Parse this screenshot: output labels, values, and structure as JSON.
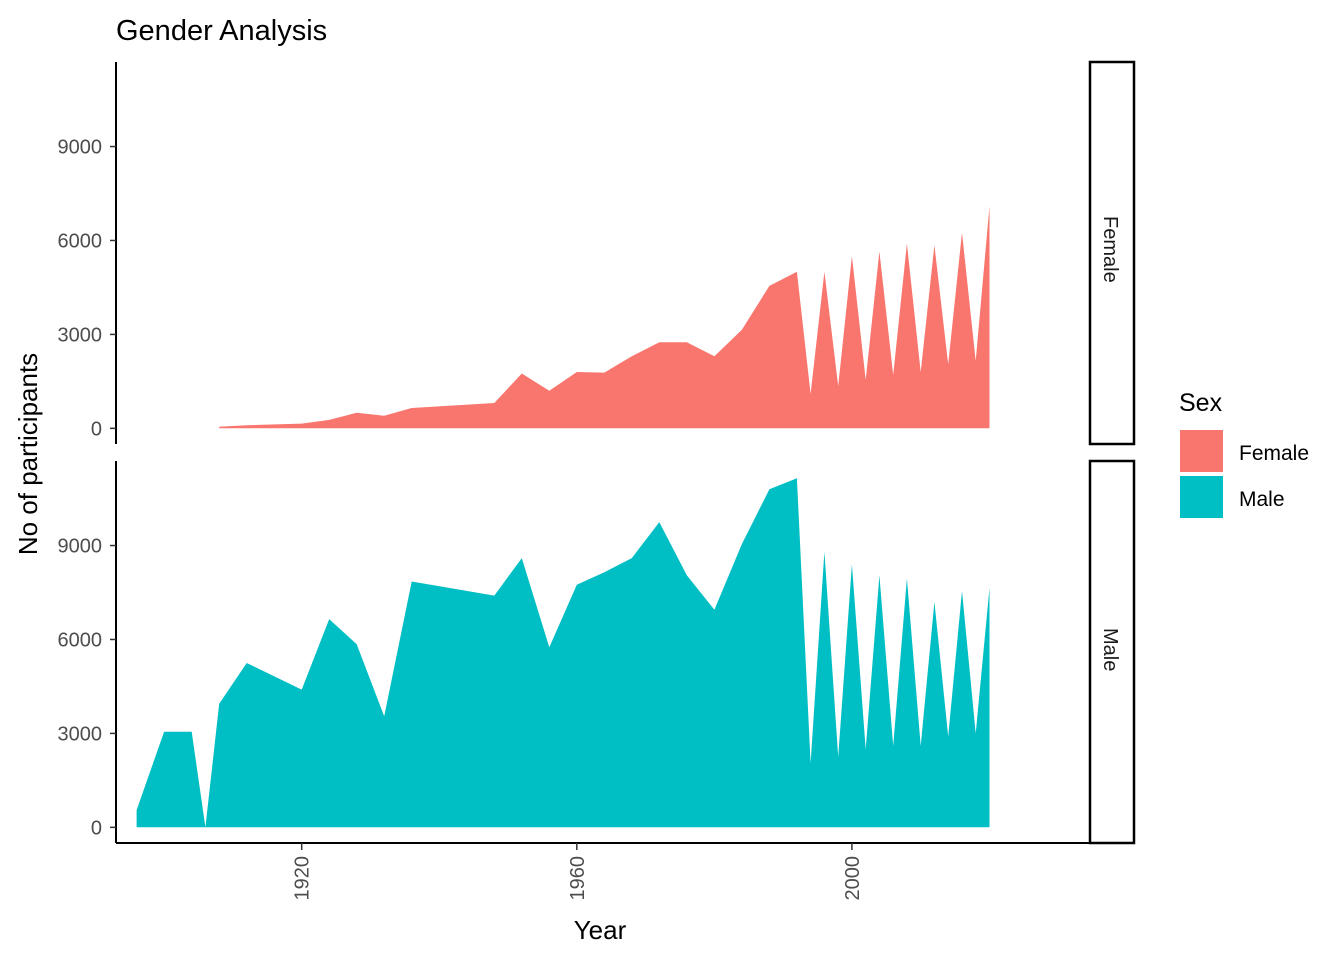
{
  "chart_data": {
    "type": "area",
    "title": "Gender Analysis",
    "xlabel": "Year",
    "ylabel": "No of participants",
    "x_ticks": [
      1920,
      1960,
      2000
    ],
    "x_tick_labels": [
      "1920",
      "1960",
      "2000"
    ],
    "y_ticks": [
      0,
      3000,
      6000,
      9000
    ],
    "y_tick_labels": [
      "0",
      "3000",
      "6000",
      "9000"
    ],
    "xlim": [
      1893,
      2032
    ],
    "ylim": [
      -500,
      11700
    ],
    "grid": false,
    "legend": {
      "title": "Sex",
      "position": "right",
      "entries": [
        {
          "label": "Female",
          "color": "#F8766D"
        },
        {
          "label": "Male",
          "color": "#00BFC4"
        }
      ]
    },
    "series": [
      {
        "name": "Female",
        "panel": "Female",
        "color": "#F8766D",
        "x": [
          1908,
          1912,
          1920,
          1924,
          1928,
          1932,
          1936,
          1948,
          1952,
          1956,
          1960,
          1964,
          1968,
          1972,
          1976,
          1980,
          1984,
          1988,
          1992,
          1994,
          1996,
          1998,
          2000,
          2002,
          2004,
          2006,
          2008,
          2010,
          2012,
          2014,
          2016,
          2018,
          2020
        ],
        "y": [
          50,
          100,
          150,
          270,
          500,
          400,
          650,
          810,
          1750,
          1200,
          1800,
          1780,
          2300,
          2750,
          2750,
          2300,
          3150,
          4550,
          5000,
          1100,
          5000,
          1350,
          5500,
          1550,
          5650,
          1700,
          5900,
          1800,
          5850,
          2050,
          6250,
          2150,
          7100
        ]
      },
      {
        "name": "Male",
        "panel": "Male",
        "color": "#00BFC4",
        "x": [
          1896,
          1900,
          1904,
          1906,
          1908,
          1912,
          1920,
          1924,
          1928,
          1932,
          1936,
          1948,
          1952,
          1956,
          1960,
          1964,
          1968,
          1972,
          1976,
          1980,
          1984,
          1988,
          1992,
          1994,
          1996,
          1998,
          2000,
          2002,
          2004,
          2006,
          2008,
          2010,
          2012,
          2014,
          2016,
          2018,
          2020
        ],
        "y": [
          550,
          3050,
          3050,
          0,
          3950,
          5250,
          4400,
          6650,
          5850,
          3550,
          7850,
          7400,
          8600,
          5750,
          7750,
          8150,
          8600,
          9750,
          8050,
          6950,
          9050,
          10800,
          11150,
          2050,
          8800,
          2250,
          8400,
          2500,
          8050,
          2600,
          7950,
          2600,
          7200,
          2900,
          7550,
          3000,
          7650
        ]
      }
    ],
    "facet_labels": [
      "Female",
      "Male"
    ]
  }
}
